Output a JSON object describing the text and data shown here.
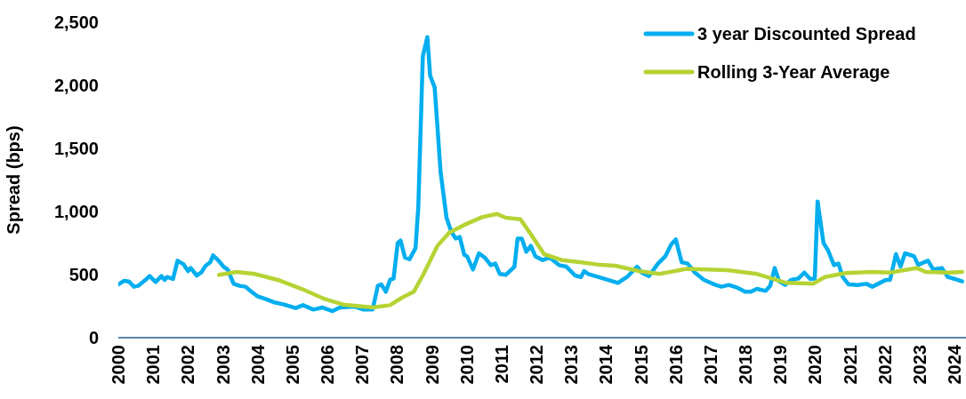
{
  "chart_data": {
    "type": "line",
    "ylabel": "Spread (bps)",
    "xlim": [
      2000,
      2024.33
    ],
    "xticks": [
      2000,
      2001,
      2002,
      2003,
      2004,
      2005,
      2006,
      2007,
      2008,
      2009,
      2010,
      2011,
      2012,
      2013,
      2014,
      2015,
      2016,
      2017,
      2018,
      2019,
      2020,
      2021,
      2022,
      2023,
      2024
    ],
    "ylim": [
      0,
      2500
    ],
    "yticks": [
      {
        "value": 0,
        "label": "0"
      },
      {
        "value": 500,
        "label": "500"
      },
      {
        "value": 1000,
        "label": "1,000"
      },
      {
        "value": 1500,
        "label": "1,500"
      },
      {
        "value": 2000,
        "label": "2,000"
      },
      {
        "value": 2500,
        "label": "2,500"
      }
    ],
    "grid": false,
    "legend": "top right",
    "marker": "none",
    "line_style": "solid",
    "series": [
      {
        "name": "3 year Discounted Spread",
        "color": "#00aeef",
        "x": [
          2000.0,
          2000.17,
          2000.3,
          2000.45,
          2000.57,
          2000.78,
          2000.9,
          2001.07,
          2001.24,
          2001.33,
          2001.4,
          2001.57,
          2001.7,
          2001.87,
          2002.0,
          2002.08,
          2002.25,
          2002.38,
          2002.5,
          2002.64,
          2002.72,
          2002.89,
          2003.02,
          2003.14,
          2003.31,
          2003.48,
          2003.65,
          2003.82,
          2003.99,
          2004.24,
          2004.45,
          2004.75,
          2005.09,
          2005.3,
          2005.6,
          2005.86,
          2006.15,
          2006.36,
          2006.79,
          2007.04,
          2007.3,
          2007.45,
          2007.55,
          2007.68,
          2007.8,
          2007.9,
          2008.02,
          2008.1,
          2008.23,
          2008.36,
          2008.53,
          2008.61,
          2008.74,
          2008.87,
          2008.95,
          2009.08,
          2009.25,
          2009.42,
          2009.55,
          2009.68,
          2009.8,
          2009.93,
          2010.01,
          2010.18,
          2010.35,
          2010.52,
          2010.69,
          2010.82,
          2010.95,
          2011.12,
          2011.37,
          2011.46,
          2011.58,
          2011.71,
          2011.84,
          2011.97,
          2012.18,
          2012.39,
          2012.65,
          2012.86,
          2013.11,
          2013.28,
          2013.37,
          2013.49,
          2013.92,
          2014.34,
          2014.6,
          2014.89,
          2015.02,
          2015.23,
          2015.49,
          2015.7,
          2015.87,
          2016.0,
          2016.17,
          2016.34,
          2016.55,
          2016.81,
          2017.14,
          2017.31,
          2017.52,
          2017.74,
          2017.99,
          2018.16,
          2018.33,
          2018.58,
          2018.71,
          2018.84,
          2018.97,
          2019.14,
          2019.31,
          2019.52,
          2019.69,
          2019.86,
          2019.99,
          2020.07,
          2020.24,
          2020.37,
          2020.54,
          2020.67,
          2020.79,
          2020.96,
          2021.22,
          2021.47,
          2021.64,
          2021.86,
          2022.03,
          2022.15,
          2022.32,
          2022.45,
          2022.58,
          2022.84,
          2022.96,
          2023.13,
          2023.24,
          2023.39,
          2023.64,
          2023.81,
          2024.01,
          2024.22
        ],
        "values": [
          422,
          451,
          446,
          404,
          411,
          458,
          488,
          441,
          488,
          458,
          481,
          465,
          610,
          582,
          528,
          552,
          493,
          516,
          568,
          598,
          652,
          606,
          563,
          540,
          427,
          411,
          404,
          364,
          329,
          305,
          282,
          263,
          235,
          258,
          223,
          239,
          211,
          239,
          246,
          223,
          223,
          411,
          422,
          364,
          458,
          469,
          751,
          770,
          634,
          622,
          709,
          1033,
          2230,
          2382,
          2077,
          1983,
          1314,
          950,
          845,
          786,
          798,
          657,
          645,
          540,
          669,
          634,
          575,
          587,
          505,
          498,
          563,
          786,
          786,
          681,
          728,
          645,
          615,
          634,
          575,
          563,
          493,
          481,
          528,
          505,
          469,
          434,
          481,
          563,
          516,
          488,
          587,
          645,
          739,
          779,
          598,
          587,
          516,
          458,
          418,
          404,
          418,
          399,
          364,
          364,
          387,
          371,
          411,
          552,
          446,
          418,
          458,
          469,
          516,
          465,
          469,
          1080,
          751,
          692,
          575,
          587,
          481,
          422,
          418,
          427,
          404,
          434,
          458,
          458,
          662,
          563,
          669,
          645,
          575,
          598,
          610,
          540,
          552,
          481,
          465,
          446
        ]
      },
      {
        "name": "Rolling 3-Year Average",
        "color": "#b5d334",
        "x": [
          2002.89,
          2003.4,
          2003.91,
          2004.58,
          2005.26,
          2005.94,
          2006.45,
          2007.3,
          2007.8,
          2008.14,
          2008.48,
          2008.74,
          2009.16,
          2009.5,
          2010.01,
          2010.44,
          2010.86,
          2011.12,
          2011.54,
          2011.84,
          2012.22,
          2012.73,
          2013.24,
          2013.75,
          2014.26,
          2014.94,
          2015.53,
          2016.29,
          2017.48,
          2018.33,
          2019.18,
          2019.94,
          2020.28,
          2020.88,
          2021.64,
          2022.15,
          2022.92,
          2023.17,
          2023.85,
          2024.22
        ],
        "values": [
          498,
          521,
          505,
          458,
          387,
          305,
          263,
          239,
          258,
          317,
          364,
          493,
          728,
          833,
          904,
          955,
          981,
          951,
          939,
          821,
          662,
          615,
          598,
          580,
          570,
          528,
          505,
          545,
          535,
          505,
          434,
          427,
          481,
          512,
          521,
          516,
          552,
          521,
          516,
          521
        ]
      }
    ]
  }
}
